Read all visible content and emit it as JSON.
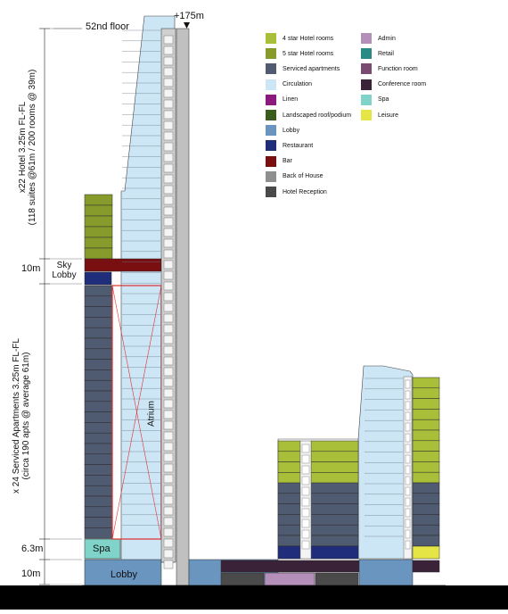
{
  "labels": {
    "top_floor": "52nd floor",
    "top_floor_sup": "nd",
    "height": "+175m",
    "dim_10m_upper": "10m",
    "sky_lobby_line1": "Sky",
    "sky_lobby_line2": "Lobby",
    "dim_6_3m": "6.3m",
    "dim_10m_lower": "10m",
    "spa": "Spa",
    "lobby": "Lobby",
    "atrium": "Atrium",
    "hotel_line1": "x22 Hotel 3.25m   FL-FL",
    "hotel_line2": "(118 suites @61m / 200 rooms @ 39m)",
    "apt_line1": "x 24 Serviced Apartments  3.25m  FL-FL",
    "apt_line2": "(circa 190 apts @ average 61m)"
  },
  "legend": [
    {
      "label": "4 star Hotel rooms",
      "color": "#a9bf3a"
    },
    {
      "label": "5 star Hotel rooms",
      "color": "#879a2c"
    },
    {
      "label": "Serviced apartments",
      "color": "#4f5b70"
    },
    {
      "label": "Circulation",
      "color": "#cde6f5"
    },
    {
      "label": "Linen",
      "color": "#8c1a7d"
    },
    {
      "label": "Landscaped roof/podium",
      "color": "#3d5a1f"
    },
    {
      "label": "Lobby",
      "color": "#6a95bf"
    },
    {
      "label": "Restaurant",
      "color": "#1f2d7a"
    },
    {
      "label": "Bar",
      "color": "#7a0f12"
    },
    {
      "label": "Back of House",
      "color": "#8f8f8f"
    },
    {
      "label": "Hotel Reception",
      "color": "#4a4a4a"
    },
    {
      "label": "Admin",
      "color": "#b48fba"
    },
    {
      "label": "Retail",
      "color": "#2a8a85"
    },
    {
      "label": "Function room",
      "color": "#7a4a72"
    },
    {
      "label": "Conference room",
      "color": "#3a2338"
    },
    {
      "label": "Spa",
      "color": "#7fd3c9"
    },
    {
      "label": "Leisure",
      "color": "#e5e545"
    }
  ],
  "colors": {
    "hotel4": "#a9bf3a",
    "hotel5": "#879a2c",
    "apartment": "#4f5b70",
    "circulation": "#cde6f5",
    "core": "#d0d0d0",
    "lobby": "#6a95bf",
    "restaurant": "#1f2d7a",
    "bar": "#7a0f12",
    "spa": "#7fd3c9",
    "leisure": "#e5e545",
    "conference": "#3a2338",
    "hotel_reception": "#4a4a4a",
    "admin": "#b48fba",
    "atrium": "#e03030"
  }
}
